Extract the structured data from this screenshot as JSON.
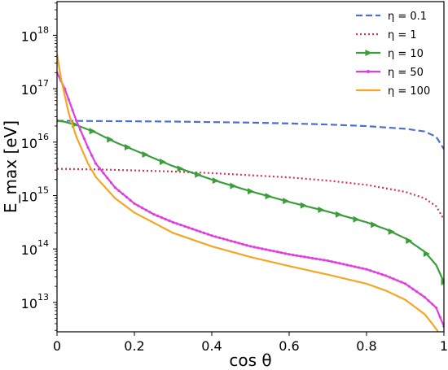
{
  "chart_data": {
    "type": "line",
    "xlabel": "cos θ",
    "ylabel": "E_max [eV]",
    "xlim": [
      0,
      1
    ],
    "ylim_log10": [
      12.45,
      18.63
    ],
    "yscale": "log",
    "x_ticks": [
      0,
      0.2,
      0.4,
      0.6,
      0.8,
      1
    ],
    "x_tick_labels": [
      "0",
      "0.2",
      "0.4",
      "0.6",
      "0.8",
      "1"
    ],
    "y_ticks": [
      13,
      14,
      15,
      16,
      17,
      18
    ],
    "y_tick_labels": [
      "10",
      "10",
      "10",
      "10",
      "10",
      "10"
    ],
    "y_tick_exponents": [
      "13",
      "14",
      "15",
      "16",
      "17",
      "18"
    ],
    "grid": false,
    "legend_position": "top-right",
    "series": [
      {
        "name": "η = 0.1",
        "color": "#4c6fd6",
        "style": "dashed",
        "marker": "none",
        "x": [
          0,
          0.1,
          0.2,
          0.3,
          0.4,
          0.5,
          0.6,
          0.7,
          0.8,
          0.9,
          0.95,
          0.98,
          1.0
        ],
        "y_log10": [
          16.4,
          16.395,
          16.39,
          16.385,
          16.375,
          16.365,
          16.35,
          16.33,
          16.3,
          16.25,
          16.2,
          16.1,
          15.87
        ]
      },
      {
        "name": "η = 1",
        "color": "#d6325a",
        "style": "dotted",
        "marker": "none",
        "x": [
          0,
          0.1,
          0.2,
          0.3,
          0.4,
          0.5,
          0.6,
          0.7,
          0.8,
          0.9,
          0.95,
          0.98,
          1.0
        ],
        "y_log10": [
          15.5,
          15.49,
          15.47,
          15.45,
          15.42,
          15.38,
          15.34,
          15.28,
          15.2,
          15.07,
          14.95,
          14.8,
          14.55
        ]
      },
      {
        "name": "η = 10",
        "color": "#3a9e3a",
        "style": "solid",
        "marker": "triangle",
        "x": [
          0,
          0.02,
          0.05,
          0.1,
          0.15,
          0.2,
          0.25,
          0.3,
          0.4,
          0.5,
          0.6,
          0.7,
          0.8,
          0.85,
          0.9,
          0.95,
          0.98,
          1.0
        ],
        "y_log10": [
          16.4,
          16.38,
          16.32,
          16.18,
          16.0,
          15.85,
          15.7,
          15.55,
          15.3,
          15.08,
          14.88,
          14.7,
          14.5,
          14.37,
          14.2,
          13.95,
          13.7,
          13.38
        ]
      },
      {
        "name": "η = 50",
        "color": "#e03ee0",
        "style": "solid",
        "marker": "dot",
        "x": [
          0,
          0.02,
          0.05,
          0.08,
          0.1,
          0.15,
          0.2,
          0.25,
          0.3,
          0.4,
          0.5,
          0.6,
          0.7,
          0.8,
          0.85,
          0.9,
          0.95,
          0.98,
          1.0
        ],
        "y_log10": [
          17.3,
          17.0,
          16.4,
          15.9,
          15.6,
          15.15,
          14.85,
          14.65,
          14.5,
          14.25,
          14.05,
          13.9,
          13.78,
          13.62,
          13.5,
          13.35,
          13.1,
          12.9,
          12.55
        ]
      },
      {
        "name": "η = 100",
        "color": "#f5a623",
        "style": "solid",
        "marker": "none",
        "x": [
          0,
          0.01,
          0.03,
          0.05,
          0.08,
          0.1,
          0.15,
          0.2,
          0.3,
          0.4,
          0.5,
          0.6,
          0.7,
          0.8,
          0.85,
          0.9,
          0.95,
          0.97,
          1.0
        ],
        "y_log10": [
          17.65,
          17.2,
          16.55,
          16.1,
          15.6,
          15.35,
          14.95,
          14.68,
          14.3,
          14.05,
          13.85,
          13.68,
          13.52,
          13.35,
          13.22,
          13.05,
          12.78,
          12.6,
          12.3
        ]
      }
    ]
  }
}
